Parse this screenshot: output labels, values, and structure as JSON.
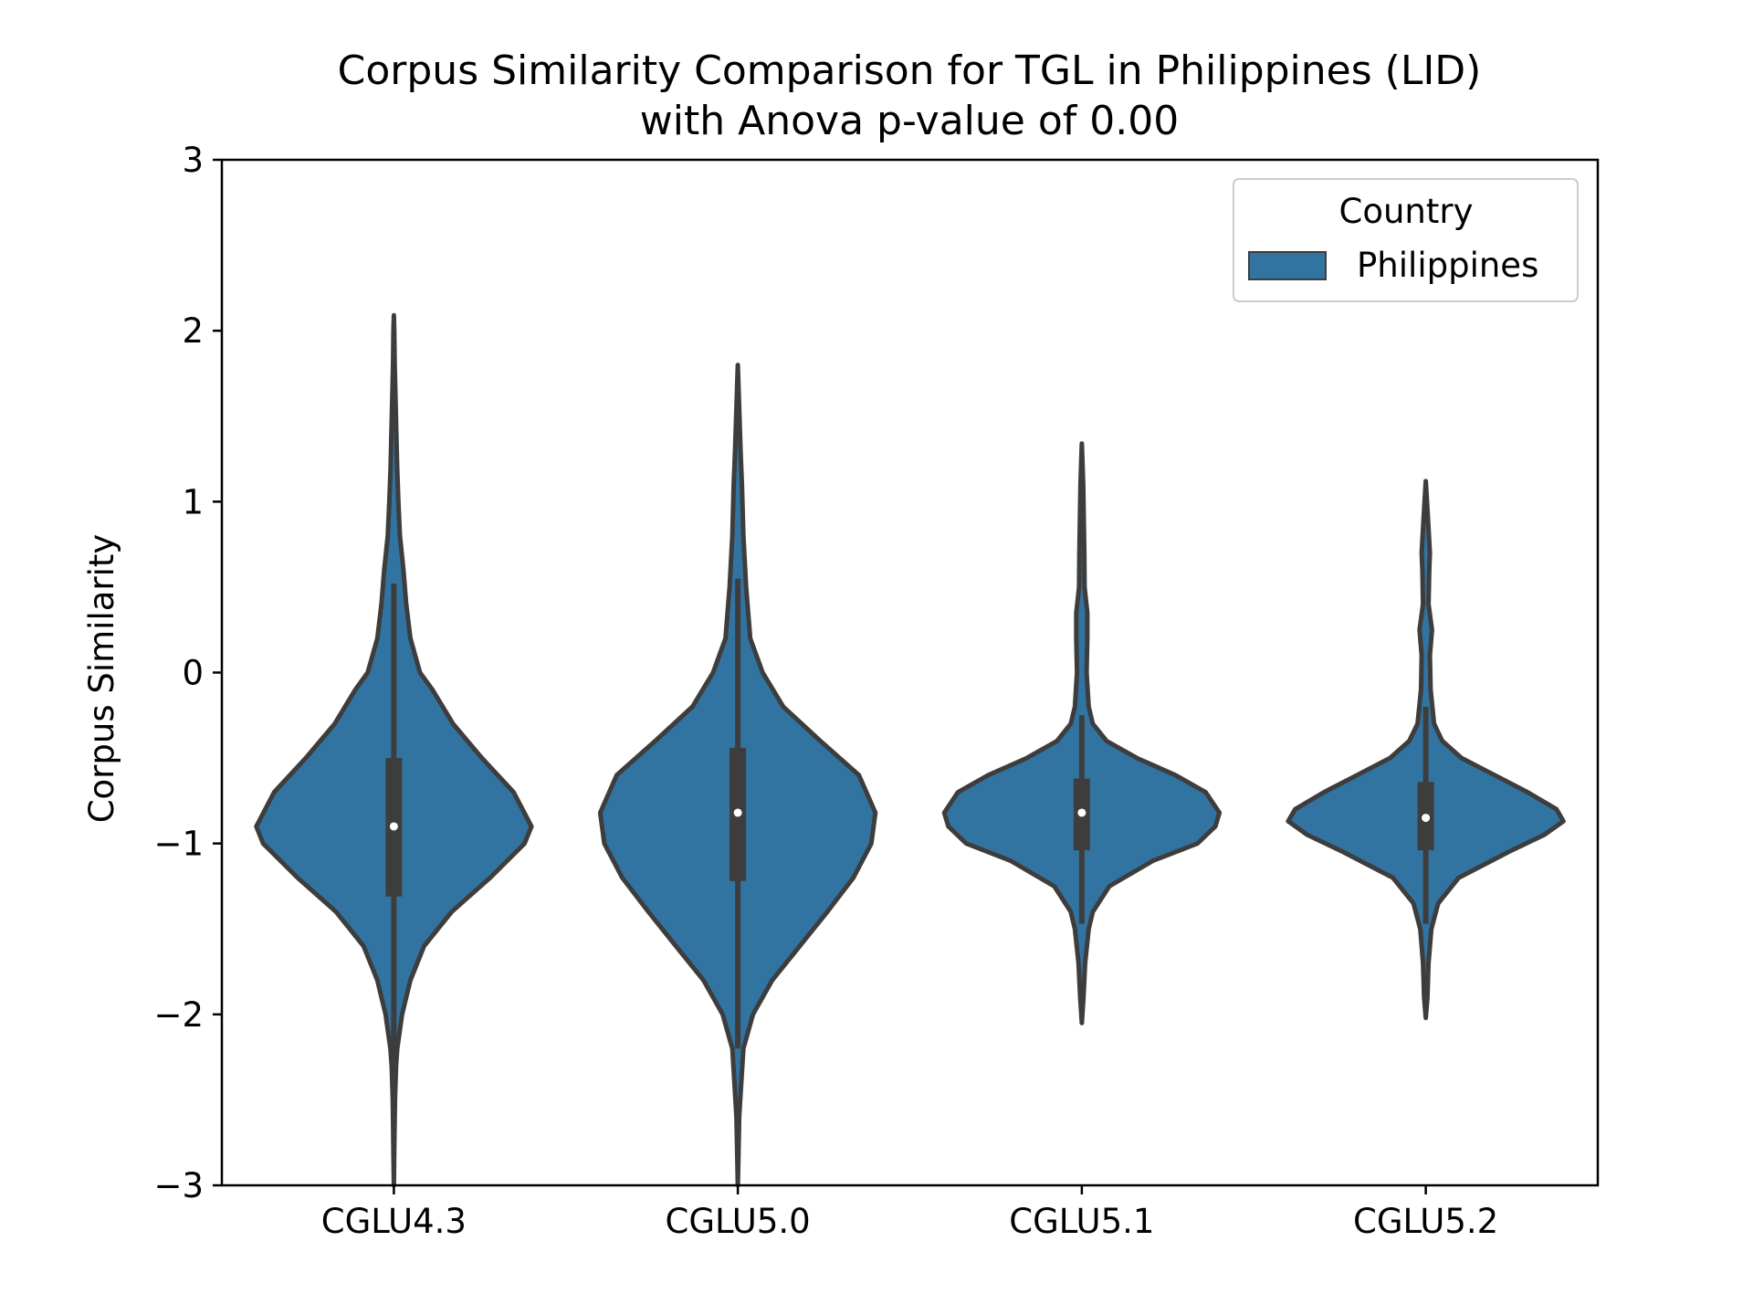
{
  "chart_data": {
    "type": "violin",
    "title": "Corpus Similarity Comparison for TGL in Philippines (LID)",
    "subtitle": "with Anova p-value of 0.00",
    "xlabel": "",
    "ylabel": "Corpus Similarity",
    "ylim": [
      -3,
      3
    ],
    "yticks": [
      -3,
      -2,
      -1,
      0,
      1,
      2,
      3
    ],
    "ytick_labels": [
      "−3",
      "−2",
      "−1",
      "0",
      "1",
      "2",
      "3"
    ],
    "categories": [
      "CGLU4.3",
      "CGLU5.0",
      "CGLU5.1",
      "CGLU5.2"
    ],
    "grid": false,
    "legend": {
      "title": "Country",
      "placement": "top-right",
      "entries": [
        "Philippines"
      ]
    },
    "colors": {
      "fill": "#3274a1",
      "edge": "#3d3d3d",
      "median": "#ffffff"
    },
    "series": [
      {
        "name": "Philippines",
        "violins": [
          {
            "category": "CGLU4.3",
            "median": -0.9,
            "q1": -1.31,
            "q3": -0.5,
            "whisker_low": -2.32,
            "whisker_high": 0.52,
            "min": -3.0,
            "max": 2.09,
            "density": [
              [
                -3.0,
                0.0
              ],
              [
                -2.8,
                0.003
              ],
              [
                -2.5,
                0.008
              ],
              [
                -2.3,
                0.016
              ],
              [
                -2.2,
                0.025
              ],
              [
                -2.0,
                0.06
              ],
              [
                -1.8,
                0.12
              ],
              [
                -1.6,
                0.22
              ],
              [
                -1.4,
                0.42
              ],
              [
                -1.2,
                0.7
              ],
              [
                -1.0,
                0.95
              ],
              [
                -0.9,
                1.0
              ],
              [
                -0.7,
                0.87
              ],
              [
                -0.5,
                0.64
              ],
              [
                -0.3,
                0.43
              ],
              [
                -0.1,
                0.28
              ],
              [
                0.0,
                0.19
              ],
              [
                0.2,
                0.12
              ],
              [
                0.4,
                0.09
              ],
              [
                0.6,
                0.07
              ],
              [
                0.8,
                0.044
              ],
              [
                1.0,
                0.033
              ],
              [
                1.2,
                0.024
              ],
              [
                1.4,
                0.018
              ],
              [
                1.6,
                0.012
              ],
              [
                1.8,
                0.006
              ],
              [
                2.0,
                0.003
              ],
              [
                2.09,
                0.0
              ]
            ]
          },
          {
            "category": "CGLU5.0",
            "median": -0.82,
            "q1": -1.22,
            "q3": -0.44,
            "whisker_low": -2.2,
            "whisker_high": 0.55,
            "min": -3.0,
            "max": 1.8,
            "density": [
              [
                -3.0,
                0.0
              ],
              [
                -2.8,
                0.005
              ],
              [
                -2.6,
                0.01
              ],
              [
                -2.4,
                0.025
              ],
              [
                -2.2,
                0.04
              ],
              [
                -2.0,
                0.11
              ],
              [
                -1.8,
                0.25
              ],
              [
                -1.6,
                0.45
              ],
              [
                -1.4,
                0.65
              ],
              [
                -1.2,
                0.84
              ],
              [
                -1.0,
                0.97
              ],
              [
                -0.82,
                1.0
              ],
              [
                -0.6,
                0.88
              ],
              [
                -0.4,
                0.6
              ],
              [
                -0.2,
                0.33
              ],
              [
                0.0,
                0.18
              ],
              [
                0.2,
                0.09
              ],
              [
                0.5,
                0.06
              ],
              [
                0.8,
                0.04
              ],
              [
                1.1,
                0.03
              ],
              [
                1.3,
                0.02
              ],
              [
                1.5,
                0.012
              ],
              [
                1.7,
                0.004
              ],
              [
                1.8,
                0.0
              ]
            ]
          },
          {
            "category": "CGLU5.1",
            "median": -0.82,
            "q1": -1.04,
            "q3": -0.62,
            "whisker_low": -1.47,
            "whisker_high": -0.25,
            "min": -2.05,
            "max": 1.34,
            "density": [
              [
                -2.05,
                0.0
              ],
              [
                -1.9,
                0.012
              ],
              [
                -1.7,
                0.024
              ],
              [
                -1.5,
                0.05
              ],
              [
                -1.4,
                0.08
              ],
              [
                -1.25,
                0.2
              ],
              [
                -1.1,
                0.52
              ],
              [
                -1.0,
                0.84
              ],
              [
                -0.9,
                0.97
              ],
              [
                -0.82,
                1.0
              ],
              [
                -0.7,
                0.9
              ],
              [
                -0.6,
                0.68
              ],
              [
                -0.5,
                0.4
              ],
              [
                -0.4,
                0.18
              ],
              [
                -0.3,
                0.08
              ],
              [
                -0.2,
                0.05
              ],
              [
                0.0,
                0.035
              ],
              [
                0.2,
                0.04
              ],
              [
                0.35,
                0.04
              ],
              [
                0.5,
                0.02
              ],
              [
                0.7,
                0.018
              ],
              [
                0.9,
                0.014
              ],
              [
                1.1,
                0.01
              ],
              [
                1.34,
                0.0
              ]
            ]
          },
          {
            "category": "CGLU5.2",
            "median": -0.85,
            "q1": -1.04,
            "q3": -0.64,
            "whisker_low": -1.47,
            "whisker_high": -0.2,
            "min": -2.02,
            "max": 1.12,
            "density": [
              [
                -2.02,
                0.0
              ],
              [
                -1.9,
                0.012
              ],
              [
                -1.7,
                0.02
              ],
              [
                -1.5,
                0.04
              ],
              [
                -1.35,
                0.09
              ],
              [
                -1.2,
                0.24
              ],
              [
                -1.05,
                0.6
              ],
              [
                -0.95,
                0.86
              ],
              [
                -0.87,
                1.0
              ],
              [
                -0.8,
                0.95
              ],
              [
                -0.7,
                0.74
              ],
              [
                -0.6,
                0.5
              ],
              [
                -0.5,
                0.26
              ],
              [
                -0.4,
                0.12
              ],
              [
                -0.3,
                0.06
              ],
              [
                -0.1,
                0.035
              ],
              [
                0.1,
                0.03
              ],
              [
                0.25,
                0.045
              ],
              [
                0.4,
                0.02
              ],
              [
                0.6,
                0.025
              ],
              [
                0.7,
                0.03
              ],
              [
                0.9,
                0.016
              ],
              [
                1.12,
                0.0
              ]
            ]
          }
        ]
      }
    ]
  }
}
